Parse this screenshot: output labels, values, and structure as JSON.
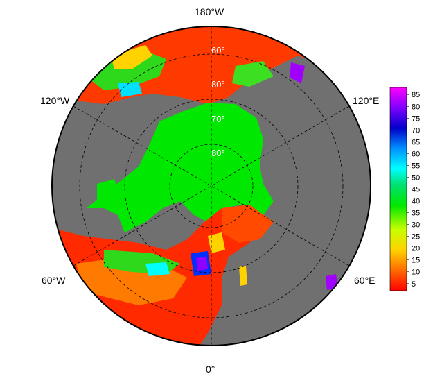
{
  "map": {
    "projection": "north polar stereographic",
    "longitude_labels": {
      "top": "180°W",
      "upper_left": "120°W",
      "upper_right": "120°E",
      "lower_left": "60°W",
      "lower_right": "60°E",
      "bottom": "0°"
    },
    "latitude_labels": [
      "60°",
      "80°",
      "70°",
      "80°"
    ],
    "colors": {
      "land": "#707070",
      "ocean_outline": "#000000",
      "grid": "#000000"
    }
  },
  "colorbar": {
    "ticks": [
      "85",
      "80",
      "75",
      "70",
      "65",
      "60",
      "55",
      "50",
      "45",
      "40",
      "35",
      "30",
      "25",
      "20",
      "15",
      "10",
      "5"
    ],
    "min": 2,
    "max": 88,
    "colors": [
      "#ff0000",
      "#ff6a00",
      "#ffd200",
      "#c8ff00",
      "#00e800",
      "#00e070",
      "#00ffff",
      "#0090ff",
      "#0000c8",
      "#8000ff",
      "#ff00ff"
    ]
  }
}
